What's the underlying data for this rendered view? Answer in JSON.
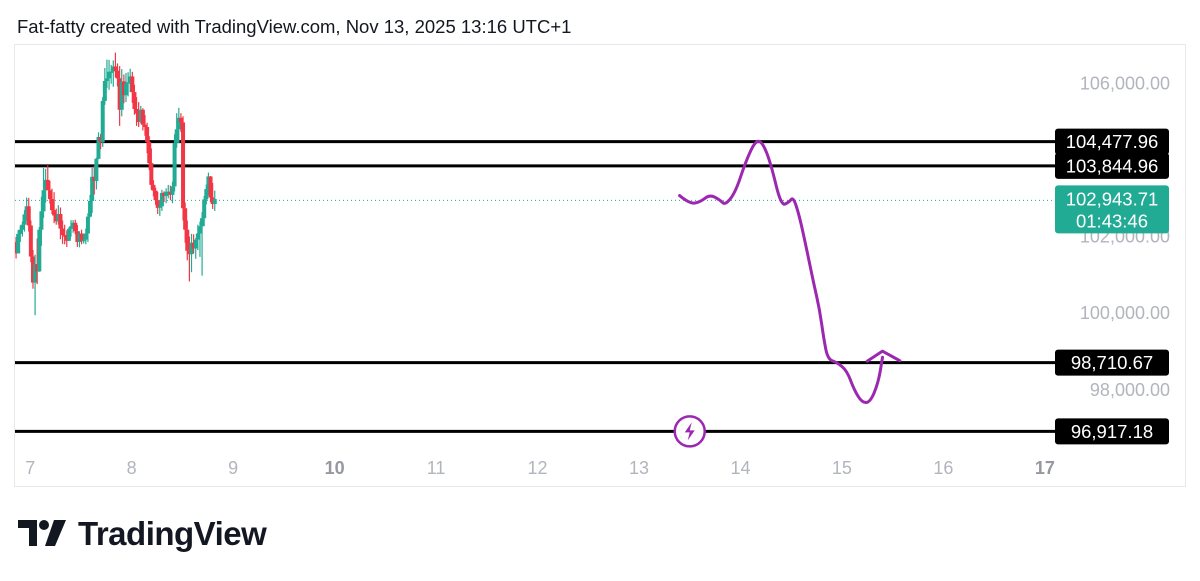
{
  "header": {
    "caption": "Fat-fatty created with TradingView.com, Nov 13, 2025 13:16 UTC+1"
  },
  "brand": {
    "name": "TradingView",
    "logo_icon": "tradingview-logo-icon"
  },
  "colors": {
    "up": "#22ab94",
    "down": "#f23645",
    "level_line": "#000000",
    "projection": "#9c27b0",
    "current_price": "#22ab94",
    "tick_text": "#b2b5be"
  },
  "chart_data": {
    "type": "candlestick",
    "title": "",
    "xlabel": "",
    "ylabel": "",
    "x_ticks": [
      {
        "label": "7",
        "bold": false
      },
      {
        "label": "8",
        "bold": false
      },
      {
        "label": "9",
        "bold": false
      },
      {
        "label": "10",
        "bold": true
      },
      {
        "label": "11",
        "bold": false
      },
      {
        "label": "12",
        "bold": false
      },
      {
        "label": "13",
        "bold": false
      },
      {
        "label": "14",
        "bold": false
      },
      {
        "label": "15",
        "bold": false
      },
      {
        "label": "16",
        "bold": false
      },
      {
        "label": "17",
        "bold": true
      }
    ],
    "x_range_days": [
      6.85,
      17.1
    ],
    "ylim": [
      96300,
      107000
    ],
    "y_ticks": [
      {
        "value": 106000,
        "label": "106,000.00"
      },
      {
        "value": 102000,
        "label": "102,000.00"
      },
      {
        "value": 100000,
        "label": "100,000.00"
      },
      {
        "value": 98000,
        "label": "98,000.00"
      }
    ],
    "levels": [
      {
        "value": 104477.96,
        "label": "104,477.96"
      },
      {
        "value": 103844.96,
        "label": "103,844.96"
      },
      {
        "value": 98710.67,
        "label": "98,710.67"
      },
      {
        "value": 96917.18,
        "label": "96,917.18"
      }
    ],
    "current_price": {
      "value": 102943.71,
      "label": "102,943.71",
      "countdown": "01:43:46"
    },
    "candles": [
      [
        101860,
        101990,
        101430,
        101560
      ],
      [
        101560,
        102170,
        101580,
        102070
      ],
      [
        102070,
        102290,
        101860,
        102180
      ],
      [
        102180,
        102390,
        102000,
        102310
      ],
      [
        102310,
        102690,
        102130,
        102580
      ],
      [
        102580,
        103020,
        102420,
        102790
      ],
      [
        102790,
        103010,
        102130,
        102290
      ],
      [
        102290,
        102420,
        101330,
        101480
      ],
      [
        101480,
        101650,
        100640,
        100800
      ],
      [
        100800,
        101530,
        99950,
        101280
      ],
      [
        101280,
        101950,
        100760,
        101090
      ],
      [
        101090,
        102250,
        101080,
        102180
      ],
      [
        102180,
        103040,
        101760,
        102660
      ],
      [
        102660,
        103790,
        102490,
        103210
      ],
      [
        103210,
        103770,
        102890,
        103480
      ],
      [
        103480,
        103860,
        103210,
        103210
      ],
      [
        103210,
        103450,
        102860,
        102980
      ],
      [
        102980,
        103250,
        102590,
        102690
      ],
      [
        102690,
        103160,
        102350,
        102550
      ],
      [
        102550,
        102730,
        102310,
        102400
      ],
      [
        102400,
        102820,
        102310,
        102590
      ],
      [
        102590,
        102760,
        101930,
        102210
      ],
      [
        102210,
        102420,
        101810,
        102040
      ],
      [
        102040,
        102310,
        101800,
        102020
      ],
      [
        102020,
        102160,
        101730,
        101890
      ],
      [
        101890,
        102240,
        101880,
        102200
      ],
      [
        102200,
        102430,
        102000,
        102270
      ],
      [
        102270,
        102430,
        102100,
        102360
      ],
      [
        102360,
        102440,
        102060,
        102140
      ],
      [
        102140,
        102300,
        101730,
        101860
      ],
      [
        101860,
        102140,
        101720,
        102080
      ],
      [
        102080,
        102180,
        101800,
        101880
      ],
      [
        101880,
        102080,
        101820,
        101920
      ],
      [
        101920,
        102210,
        101800,
        102080
      ],
      [
        102080,
        102610,
        101860,
        102520
      ],
      [
        102520,
        103090,
        102500,
        102930
      ],
      [
        102930,
        103790,
        102620,
        103560
      ],
      [
        103560,
        103850,
        103100,
        103450
      ],
      [
        103450,
        104060,
        103230,
        104030
      ],
      [
        104030,
        104720,
        104020,
        104600
      ],
      [
        104600,
        104680,
        104280,
        104460
      ],
      [
        104460,
        105640,
        104340,
        105540
      ],
      [
        105540,
        106400,
        105440,
        106060
      ],
      [
        106060,
        106620,
        105880,
        106130
      ],
      [
        106130,
        106610,
        105830,
        106300
      ],
      [
        106300,
        106480,
        105990,
        106310
      ],
      [
        106310,
        106600,
        105910,
        106440
      ],
      [
        106440,
        106800,
        106150,
        106330
      ],
      [
        106330,
        106520,
        105920,
        106130
      ],
      [
        106130,
        106450,
        104890,
        105310
      ],
      [
        105310,
        106370,
        105140,
        106050
      ],
      [
        106050,
        106230,
        105480,
        105690
      ],
      [
        105690,
        106270,
        105510,
        105990
      ],
      [
        105990,
        106290,
        105660,
        106030
      ],
      [
        106030,
        106380,
        105770,
        106180
      ],
      [
        106180,
        106300,
        105490,
        105770
      ],
      [
        105770,
        105960,
        105180,
        105330
      ],
      [
        105330,
        105640,
        104890,
        105210
      ],
      [
        105210,
        105510,
        104860,
        104990
      ],
      [
        104990,
        105410,
        104950,
        105310
      ],
      [
        105310,
        105350,
        104770,
        104920
      ],
      [
        104920,
        105170,
        104630,
        104860
      ],
      [
        104860,
        104970,
        104180,
        104470
      ],
      [
        104470,
        104620,
        103740,
        103920
      ],
      [
        103920,
        104300,
        103220,
        103350
      ],
      [
        103350,
        103470,
        103050,
        103200
      ],
      [
        103200,
        103280,
        102830,
        102950
      ],
      [
        102950,
        103170,
        102590,
        102750
      ],
      [
        102750,
        102940,
        102540,
        102790
      ],
      [
        102790,
        103220,
        102670,
        103140
      ],
      [
        103140,
        103180,
        102900,
        103060
      ],
      [
        103060,
        103260,
        102870,
        103170
      ],
      [
        103170,
        103350,
        103000,
        103170
      ],
      [
        103170,
        103330,
        102950,
        103090
      ],
      [
        103090,
        103430,
        102870,
        103310
      ],
      [
        103310,
        104670,
        103180,
        104450
      ],
      [
        104450,
        105220,
        104320,
        104800
      ],
      [
        104800,
        105360,
        104440,
        105100
      ],
      [
        105100,
        105220,
        104730,
        104980
      ],
      [
        104980,
        105140,
        102420,
        102740
      ],
      [
        102740,
        102890,
        101840,
        102180
      ],
      [
        102180,
        102420,
        101380,
        101630
      ],
      [
        101630,
        102000,
        100830,
        101540
      ],
      [
        101540,
        102070,
        101070,
        101840
      ],
      [
        101840,
        102060,
        101560,
        101690
      ],
      [
        101690,
        101960,
        101420,
        101920
      ],
      [
        101920,
        102310,
        101650,
        102080
      ],
      [
        102080,
        102390,
        101470,
        102270
      ],
      [
        102270,
        102640,
        100980,
        102480
      ],
      [
        102480,
        103060,
        102270,
        102970
      ],
      [
        102970,
        103360,
        102840,
        103240
      ],
      [
        103240,
        103670,
        103080,
        103570
      ],
      [
        103570,
        103580,
        102900,
        103020
      ],
      [
        103020,
        103400,
        102720,
        102850
      ],
      [
        102850,
        103200,
        102670,
        102980
      ]
    ],
    "projection_path": [
      [
        13.4,
        103070
      ],
      [
        13.5,
        102850
      ],
      [
        13.6,
        102900
      ],
      [
        13.7,
        103100
      ],
      [
        13.8,
        102950
      ],
      [
        13.85,
        102820
      ],
      [
        13.95,
        103150
      ],
      [
        14.05,
        103950
      ],
      [
        14.15,
        104520
      ],
      [
        14.22,
        104450
      ],
      [
        14.3,
        103900
      ],
      [
        14.4,
        102800
      ],
      [
        14.48,
        102900
      ],
      [
        14.52,
        103040
      ],
      [
        14.58,
        102550
      ],
      [
        14.65,
        101700
      ],
      [
        14.72,
        100800
      ],
      [
        14.78,
        100100
      ],
      [
        14.82,
        99350
      ],
      [
        14.86,
        98800
      ],
      [
        14.95,
        98720
      ],
      [
        15.05,
        98500
      ],
      [
        15.12,
        98000
      ],
      [
        15.2,
        97660
      ],
      [
        15.28,
        97680
      ],
      [
        15.36,
        98200
      ],
      [
        15.4,
        98850
      ]
    ],
    "projection_arrow": [
      [
        15.25,
        98750
      ],
      [
        15.4,
        99010
      ],
      [
        15.57,
        98760
      ]
    ],
    "marker": {
      "x_day": 13.5,
      "y_value": 96917.18,
      "icon": "lightning-icon"
    }
  }
}
